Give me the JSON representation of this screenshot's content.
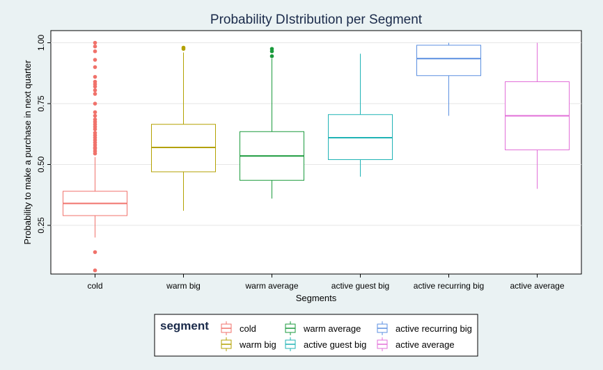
{
  "chart_data": {
    "type": "boxplot",
    "title": "Probability DIstribution per Segment",
    "xlabel": "Segments",
    "ylabel": "Probability to make a purchase in next quarter",
    "ylim": [
      0.05,
      1.05
    ],
    "yticks": [
      0.25,
      0.5,
      0.75,
      1.0
    ],
    "ytick_labels": [
      "0.25",
      "0.50",
      "0.75",
      "1.00"
    ],
    "grid": true,
    "legend_title": "segment",
    "legend_position": "bottom",
    "categories": [
      "cold",
      "warm big",
      "warm average",
      "active guest big",
      "active recurring big",
      "active average"
    ],
    "series": [
      {
        "name": "cold",
        "color": "#f0726b",
        "whisker_low": 0.2,
        "q1": 0.29,
        "median": 0.34,
        "q3": 0.39,
        "whisker_high": 0.53,
        "outliers": [
          1.0,
          0.985,
          0.965,
          0.93,
          0.9,
          0.86,
          0.84,
          0.83,
          0.82,
          0.805,
          0.79,
          0.75,
          0.715,
          0.7,
          0.685,
          0.675,
          0.665,
          0.655,
          0.645,
          0.63,
          0.62,
          0.61,
          0.6,
          0.59,
          0.58,
          0.57,
          0.565,
          0.555,
          0.545,
          0.14,
          0.065
        ]
      },
      {
        "name": "warm big",
        "color": "#b3a100",
        "whisker_low": 0.31,
        "q1": 0.47,
        "median": 0.57,
        "q3": 0.665,
        "whisker_high": 0.96,
        "outliers": [
          0.98,
          0.975
        ]
      },
      {
        "name": "warm average",
        "color": "#1a9a3c",
        "whisker_low": 0.36,
        "q1": 0.435,
        "median": 0.535,
        "q3": 0.635,
        "whisker_high": 0.935,
        "outliers": [
          0.975,
          0.965,
          0.945
        ]
      },
      {
        "name": "active guest big",
        "color": "#1fb3b5",
        "whisker_low": 0.45,
        "q1": 0.52,
        "median": 0.61,
        "q3": 0.705,
        "whisker_high": 0.955,
        "outliers": []
      },
      {
        "name": "active recurring big",
        "color": "#5b8fe0",
        "whisker_low": 0.7,
        "q1": 0.865,
        "median": 0.935,
        "q3": 0.99,
        "whisker_high": 1.0,
        "outliers": []
      },
      {
        "name": "active average",
        "color": "#e26fd8",
        "whisker_low": 0.4,
        "q1": 0.56,
        "median": 0.7,
        "q3": 0.84,
        "whisker_high": 1.0,
        "outliers": []
      }
    ]
  }
}
